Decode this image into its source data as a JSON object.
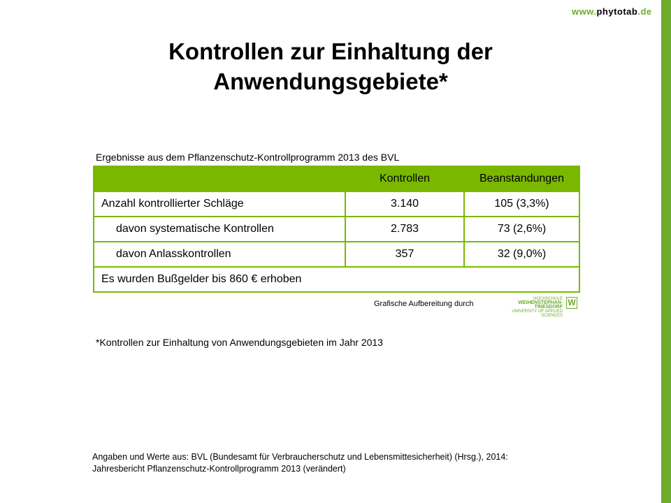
{
  "header": {
    "url_prefix": "www.",
    "url_main": "phytotab",
    "url_suffix": ".de"
  },
  "title_line1": "Kontrollen zur Einhaltung der",
  "title_line2": "Anwendungsgebiete*",
  "table": {
    "caption": "Ergebnisse aus dem Pflanzenschutz-Kontrollprogramm 2013 des BVL",
    "headers": [
      "",
      "Kontrollen",
      "Beanstandungen"
    ],
    "rows": [
      [
        "Anzahl kontrollierter Schläge",
        "3.140",
        "105 (3,3%)"
      ],
      [
        "davon systematische Kontrollen",
        "2.783",
        "73 (2,6%)"
      ],
      [
        "davon Anlasskontrollen",
        "357",
        "32 (9,0%)"
      ]
    ],
    "footer_row": "Es wurden Bußgelder bis 860 € erhoben"
  },
  "credit": "Grafische Aufbereitung durch",
  "logo": {
    "line1": "HOCHSCHULE",
    "line2": "WEIHENSTEPHAN-TRIESDORF",
    "line3": "UNIVERSITY OF APPLIED SCIENCES"
  },
  "footnote": "*Kontrollen zur Einhaltung von Anwendungsgebieten im Jahr 2013",
  "source_line1": "Angaben und Werte aus: BVL (Bundesamt für Verbraucherschutz und Lebensmittesicherheit) (Hrsg.), 2014:",
  "source_line2": "Jahresbericht Pflanzenschutz-Kontrollprogramm 2013 (verändert)",
  "colors": {
    "accent": "#7ab800",
    "bar": "#6eab2b"
  }
}
